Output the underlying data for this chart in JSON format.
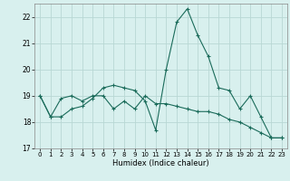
{
  "title": "",
  "xlabel": "Humidex (Indice chaleur)",
  "background_color": "#d8f0ee",
  "grid_color": "#b8d8d4",
  "line_color": "#1a6b5a",
  "xlim": [
    -0.5,
    23.5
  ],
  "ylim": [
    17,
    22.5
  ],
  "yticks": [
    17,
    18,
    19,
    20,
    21,
    22
  ],
  "xticks": [
    0,
    1,
    2,
    3,
    4,
    5,
    6,
    7,
    8,
    9,
    10,
    11,
    12,
    13,
    14,
    15,
    16,
    17,
    18,
    19,
    20,
    21,
    22,
    23
  ],
  "series": [
    [
      19.0,
      18.2,
      18.2,
      18.5,
      18.6,
      18.9,
      19.3,
      19.4,
      19.3,
      19.2,
      18.8,
      17.7,
      20.0,
      21.8,
      22.3,
      21.3,
      20.5,
      19.3,
      19.2,
      18.5,
      19.0,
      18.2,
      17.4,
      17.4
    ],
    [
      19.0,
      18.2,
      18.9,
      19.0,
      18.8,
      19.0,
      19.0,
      18.5,
      18.8,
      18.5,
      19.0,
      18.7,
      18.7,
      18.6,
      18.5,
      18.4,
      18.4,
      18.3,
      18.1,
      18.0,
      17.8,
      17.6,
      17.4,
      17.4
    ]
  ]
}
